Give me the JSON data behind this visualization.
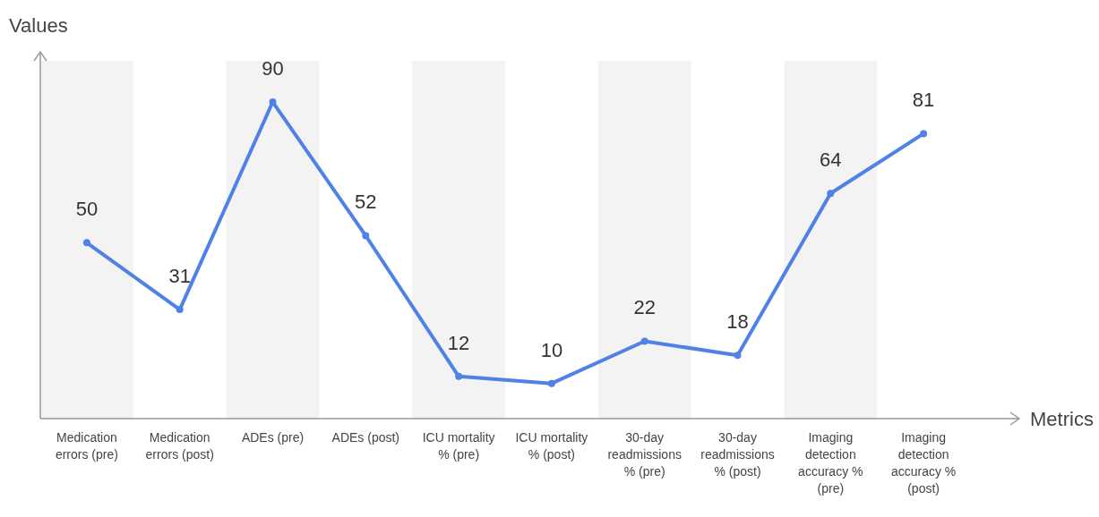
{
  "chart_data": {
    "type": "line",
    "xlabel": "Metrics",
    "ylabel": "Values",
    "categories": [
      "Medication errors (pre)",
      "Medication errors (post)",
      "ADEs (pre)",
      "ADEs (post)",
      "ICU mortality % (pre)",
      "ICU mortality % (post)",
      "30-day readmissions % (pre)",
      "30-day readmissions % (post)",
      "Imaging detection accuracy % (pre)",
      "Imaging detection accuracy % (post)"
    ],
    "series": [
      {
        "color": "#4f81e6",
        "values": [
          50,
          31,
          90,
          52,
          12,
          10,
          22,
          18,
          64,
          81
        ]
      }
    ],
    "data_labels": true,
    "marker": "circle",
    "line_style": "solid",
    "bands": [
      {
        "axis": "x",
        "from": "Medication errors (pre)",
        "to": "Medication errors (pre)",
        "color": "#f3f3f3"
      },
      {
        "axis": "x",
        "from": "ADEs (pre)",
        "to": "ADEs (pre)",
        "color": "#f3f3f3"
      },
      {
        "axis": "x",
        "from": "ICU mortality % (pre)",
        "to": "ICU mortality % (pre)",
        "color": "#f3f3f3"
      },
      {
        "axis": "x",
        "from": "30-day readmissions % (pre)",
        "to": "30-day readmissions % (pre)",
        "color": "#f3f3f3"
      },
      {
        "axis": "x",
        "from": "Imaging detection accuracy % (pre)",
        "to": "Imaging detection accuracy % (pre)",
        "color": "#f3f3f3"
      }
    ]
  }
}
